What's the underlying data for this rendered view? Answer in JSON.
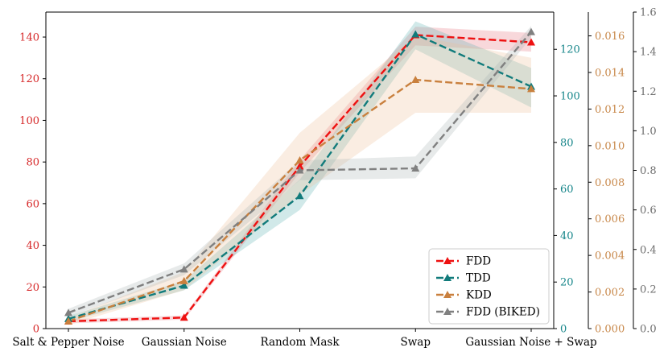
{
  "chart_data": {
    "type": "line",
    "title": "",
    "xlabel": "",
    "categories": [
      "Salt & Pepper Noise",
      "Gaussian Noise",
      "Random Mask",
      "Swap",
      "Gaussian Noise + Swap"
    ],
    "axes": [
      {
        "id": "fdd",
        "label": "",
        "color": "#d62728",
        "ylim": [
          0,
          152
        ],
        "ticks": [
          0,
          20,
          40,
          60,
          80,
          100,
          120,
          140
        ],
        "decimals": 0
      },
      {
        "id": "tdd",
        "label": "",
        "color": "#17868a",
        "ylim": [
          0,
          136
        ],
        "ticks": [
          0,
          20,
          40,
          60,
          80,
          100,
          120
        ],
        "decimals": 0
      },
      {
        "id": "kdd",
        "label": "",
        "color": "#c8884a",
        "ylim": [
          0,
          0.0173
        ],
        "ticks": [
          0.0,
          0.002,
          0.004,
          0.006,
          0.008,
          0.01,
          0.012,
          0.014,
          0.016
        ],
        "decimals": 3
      },
      {
        "id": "biked",
        "label": "",
        "color": "#6e6e6e",
        "ylim": [
          0,
          1.6
        ],
        "ticks": [
          0.0,
          0.2,
          0.4,
          0.6,
          0.8,
          1.0,
          1.2,
          1.4,
          1.6
        ],
        "decimals": 1
      }
    ],
    "series": [
      {
        "name": "FDD",
        "axis": "fdd",
        "color": "#ee1111",
        "band_color": "#e5737d",
        "values": [
          3.5,
          5.3,
          78.0,
          141.0,
          137.5
        ],
        "lower": [
          2.5,
          4.3,
          75.0,
          136.0,
          133.0
        ],
        "upper": [
          4.5,
          6.3,
          81.0,
          145.0,
          142.0
        ]
      },
      {
        "name": "TDD",
        "axis": "tdd",
        "color": "#117b7b",
        "band_color": "#5ab1b1",
        "values": [
          4.2,
          18.5,
          57.0,
          126.5,
          104.0
        ],
        "lower": [
          3.0,
          16.5,
          51.0,
          120.0,
          95.0
        ],
        "upper": [
          5.4,
          20.5,
          64.0,
          132.0,
          112.0
        ]
      },
      {
        "name": "KDD",
        "axis": "kdd",
        "color": "#c9803e",
        "band_color": "#eebf97",
        "values": [
          0.0004,
          0.0026,
          0.0092,
          0.0136,
          0.0131
        ],
        "lower": [
          0.0002,
          0.0021,
          0.0073,
          0.0118,
          0.0118
        ],
        "upper": [
          0.0006,
          0.0031,
          0.0107,
          0.016,
          0.0148
        ]
      },
      {
        "name": "FDD (BIKED)",
        "axis": "biked",
        "color": "#808080",
        "band_color": "#a8b4b4",
        "values": [
          0.08,
          0.3,
          0.8,
          0.81,
          1.5
        ],
        "lower": [
          0.06,
          0.27,
          0.75,
          0.76,
          1.47
        ],
        "upper": [
          0.1,
          0.33,
          0.85,
          0.87,
          1.53
        ]
      }
    ],
    "legend_position": "bottom-right",
    "grid": false
  }
}
